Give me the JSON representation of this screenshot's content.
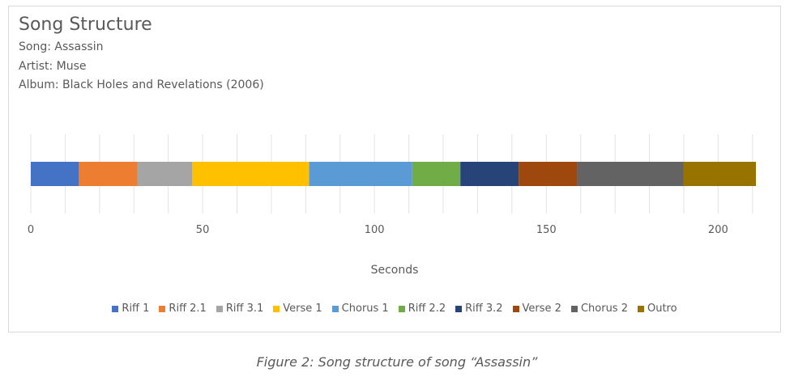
{
  "chart": {
    "title": "Song Structure",
    "song_line": "Song: Assassin",
    "artist_line": "Artist: Muse",
    "album_line": "Album: Black Holes and Revelations (2006)"
  },
  "caption": "Figure 2: Song structure of song “Assassin”",
  "chart_data": {
    "type": "bar",
    "orientation": "horizontal",
    "stacked": true,
    "categories": [
      ""
    ],
    "xlabel": "Seconds",
    "ylabel": "",
    "xlim": [
      0,
      211
    ],
    "xticks": [
      0,
      50,
      100,
      150,
      200
    ],
    "grid": true,
    "legend_position": "bottom",
    "series": [
      {
        "name": "Riff 1",
        "values": [
          14
        ],
        "color": "#4472c4"
      },
      {
        "name": "Riff 2.1",
        "values": [
          17
        ],
        "color": "#ed7d31"
      },
      {
        "name": "Riff 3.1",
        "values": [
          16
        ],
        "color": "#a5a5a5"
      },
      {
        "name": "Verse 1",
        "values": [
          34
        ],
        "color": "#ffc000"
      },
      {
        "name": "Chorus 1",
        "values": [
          30
        ],
        "color": "#5b9bd5"
      },
      {
        "name": "Riff 2.2",
        "values": [
          14
        ],
        "color": "#70ad47"
      },
      {
        "name": "Riff 3.2",
        "values": [
          17
        ],
        "color": "#264478"
      },
      {
        "name": "Verse 2",
        "values": [
          17
        ],
        "color": "#9e480e"
      },
      {
        "name": "Chorus 2",
        "values": [
          31
        ],
        "color": "#636363"
      },
      {
        "name": "Outro",
        "values": [
          21
        ],
        "color": "#997300"
      }
    ]
  }
}
